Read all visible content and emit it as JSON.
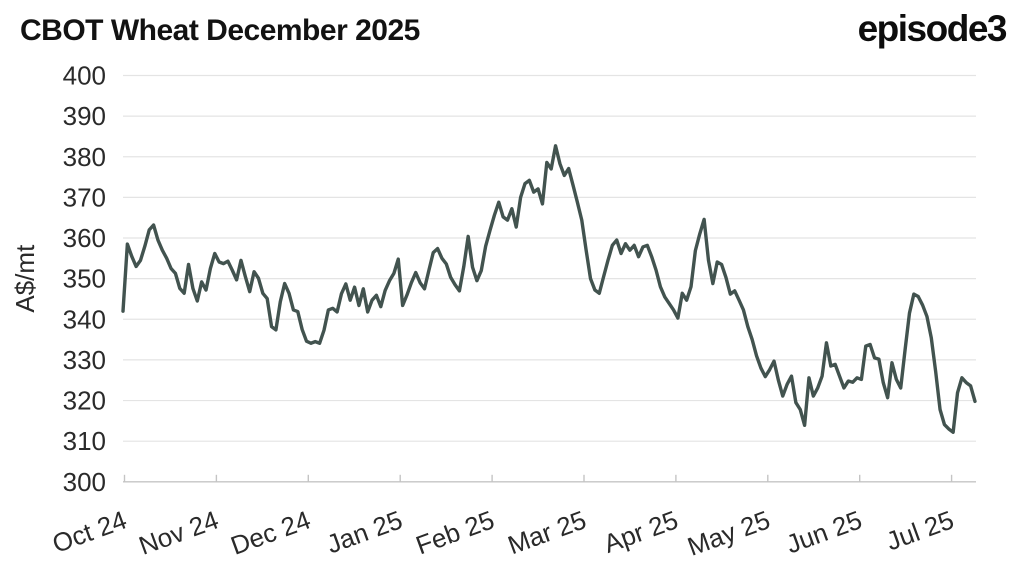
{
  "header": {
    "title": "CBOT Wheat December 2025",
    "logo_text": "episode3"
  },
  "chart_data": {
    "type": "line",
    "title": "CBOT Wheat December 2025",
    "xlabel": "",
    "ylabel": "A$/mt",
    "ylim": [
      300,
      400
    ],
    "yticks": [
      300,
      310,
      320,
      330,
      340,
      350,
      360,
      370,
      380,
      390,
      400
    ],
    "x_tick_labels": [
      "Oct 24",
      "Nov 24",
      "Dec 24",
      "Jan 25",
      "Feb 25",
      "Mar 25",
      "Apr 25",
      "May 25",
      "Jun 25",
      "Jul 25"
    ],
    "grid": "horizontal",
    "legend_position": "none",
    "colors": {
      "line": "#42534f",
      "grid": "#e4e4e4",
      "axis": "#c4c4c4",
      "tick": "#c4c4c4",
      "label_text": "#2a2a2a",
      "title_text": "#121212",
      "background": "#ffffff"
    },
    "series": [
      {
        "name": "CBOT Wheat December 2025 price (A$/mt), daily, Oct 2024 - early Jul 2025",
        "values": [
          342.0,
          358.5,
          355.5,
          353.0,
          354.5,
          358.0,
          362.0,
          363.2,
          359.5,
          357.0,
          355.0,
          352.5,
          351.3,
          347.6,
          346.4,
          353.5,
          347.6,
          344.5,
          349.2,
          347.2,
          352.5,
          356.2,
          354.1,
          353.7,
          354.3,
          352.1,
          349.7,
          354.5,
          350.5,
          346.8,
          351.7,
          350.1,
          346.4,
          345.1,
          338.2,
          337.4,
          344.3,
          348.8,
          346.4,
          342.3,
          341.9,
          337.5,
          334.6,
          334.1,
          334.5,
          334.1,
          337.3,
          342.3,
          342.7,
          341.8,
          346.3,
          348.7,
          344.7,
          347.9,
          343.4,
          347.5,
          341.8,
          344.7,
          345.9,
          343.1,
          347.1,
          349.5,
          351.3,
          354.8,
          343.4,
          346.0,
          349.0,
          351.5,
          349.0,
          347.5,
          352.0,
          356.4,
          357.4,
          355.0,
          353.6,
          350.3,
          348.5,
          347.0,
          353.0,
          360.4,
          352.8,
          349.5,
          352.0,
          358.0,
          361.9,
          365.6,
          368.8,
          365.2,
          364.4,
          367.2,
          362.7,
          370.0,
          373.4,
          374.2,
          371.3,
          372.1,
          368.4,
          378.6,
          377.0,
          382.7,
          378.3,
          375.4,
          377.1,
          373.0,
          368.8,
          364.4,
          357.0,
          350.0,
          347.2,
          346.4,
          350.5,
          354.5,
          358.2,
          359.5,
          356.2,
          358.6,
          357.0,
          358.2,
          355.4,
          357.8,
          358.2,
          355.4,
          352.1,
          348.0,
          345.5,
          343.9,
          342.3,
          340.3,
          346.4,
          344.7,
          348.0,
          356.9,
          361.0,
          364.6,
          354.5,
          348.8,
          354.1,
          353.5,
          350.3,
          346.2,
          347.0,
          344.7,
          342.3,
          338.2,
          335.0,
          331.0,
          328.0,
          325.9,
          327.6,
          329.7,
          325.0,
          321.1,
          324.0,
          326.0,
          319.5,
          317.8,
          313.9,
          325.6,
          321.1,
          323.1,
          326.0,
          334.2,
          328.5,
          328.9,
          326.0,
          323.1,
          324.8,
          324.5,
          325.6,
          325.2,
          333.4,
          333.8,
          330.5,
          330.2,
          324.4,
          320.7,
          329.3,
          325.2,
          323.1,
          332.5,
          341.5,
          346.2,
          345.6,
          343.5,
          340.7,
          335.4,
          327.1,
          317.8,
          314.1,
          313.0,
          312.2,
          321.9,
          325.6,
          324.4,
          323.6,
          319.8
        ]
      }
    ]
  }
}
